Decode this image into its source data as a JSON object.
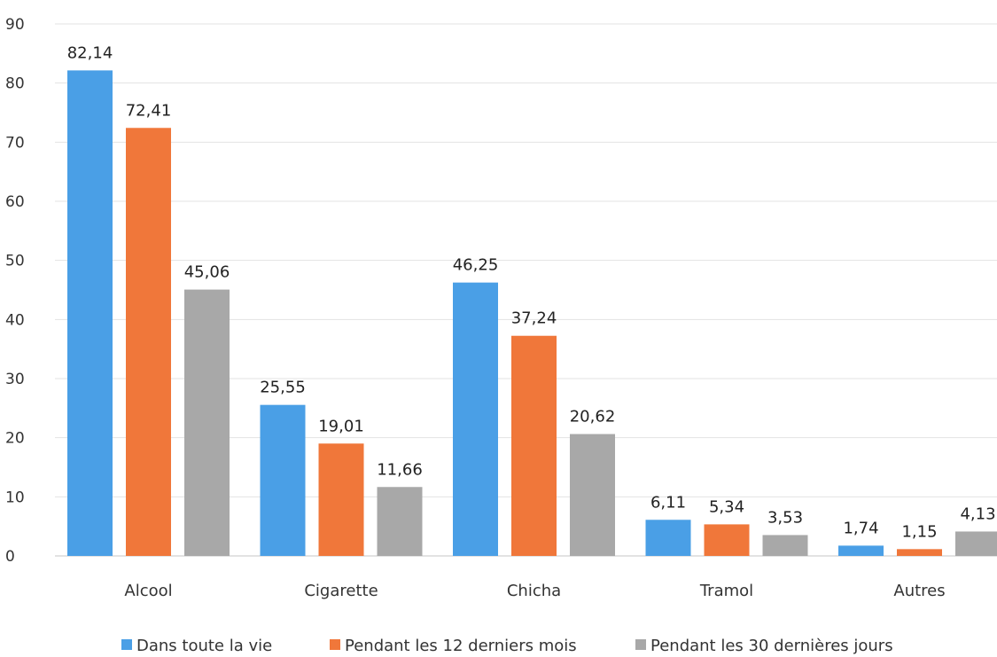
{
  "chart_data": {
    "type": "bar",
    "categories": [
      "Alcool",
      "Cigarette",
      "Chicha",
      "Tramol",
      "Autres"
    ],
    "series": [
      {
        "name": "Dans toute la vie",
        "color": "#4a9fe6",
        "values": [
          82.14,
          25.55,
          46.25,
          6.11,
          1.74
        ],
        "labels": [
          "82,14",
          "25,55",
          "46,25",
          "6,11",
          "1,74"
        ]
      },
      {
        "name": "Pendant les 12 derniers mois",
        "color": "#f0773a",
        "values": [
          72.41,
          19.01,
          37.24,
          5.34,
          1.15
        ],
        "labels": [
          "72,41",
          "19,01",
          "37,24",
          "5,34",
          "1,15"
        ]
      },
      {
        "name": "Pendant les 30 dernières jours",
        "color": "#a8a8a8",
        "values": [
          45.06,
          11.66,
          20.62,
          3.53,
          4.13
        ],
        "labels": [
          "45,06",
          "11,66",
          "20,62",
          "3,53",
          "4,13"
        ]
      }
    ],
    "yticks": [
      "0",
      "10",
      "20",
      "30",
      "40",
      "50",
      "60",
      "70",
      "80",
      "90"
    ],
    "ylim": [
      0,
      90
    ],
    "grid": true,
    "legend_position": "bottom"
  }
}
